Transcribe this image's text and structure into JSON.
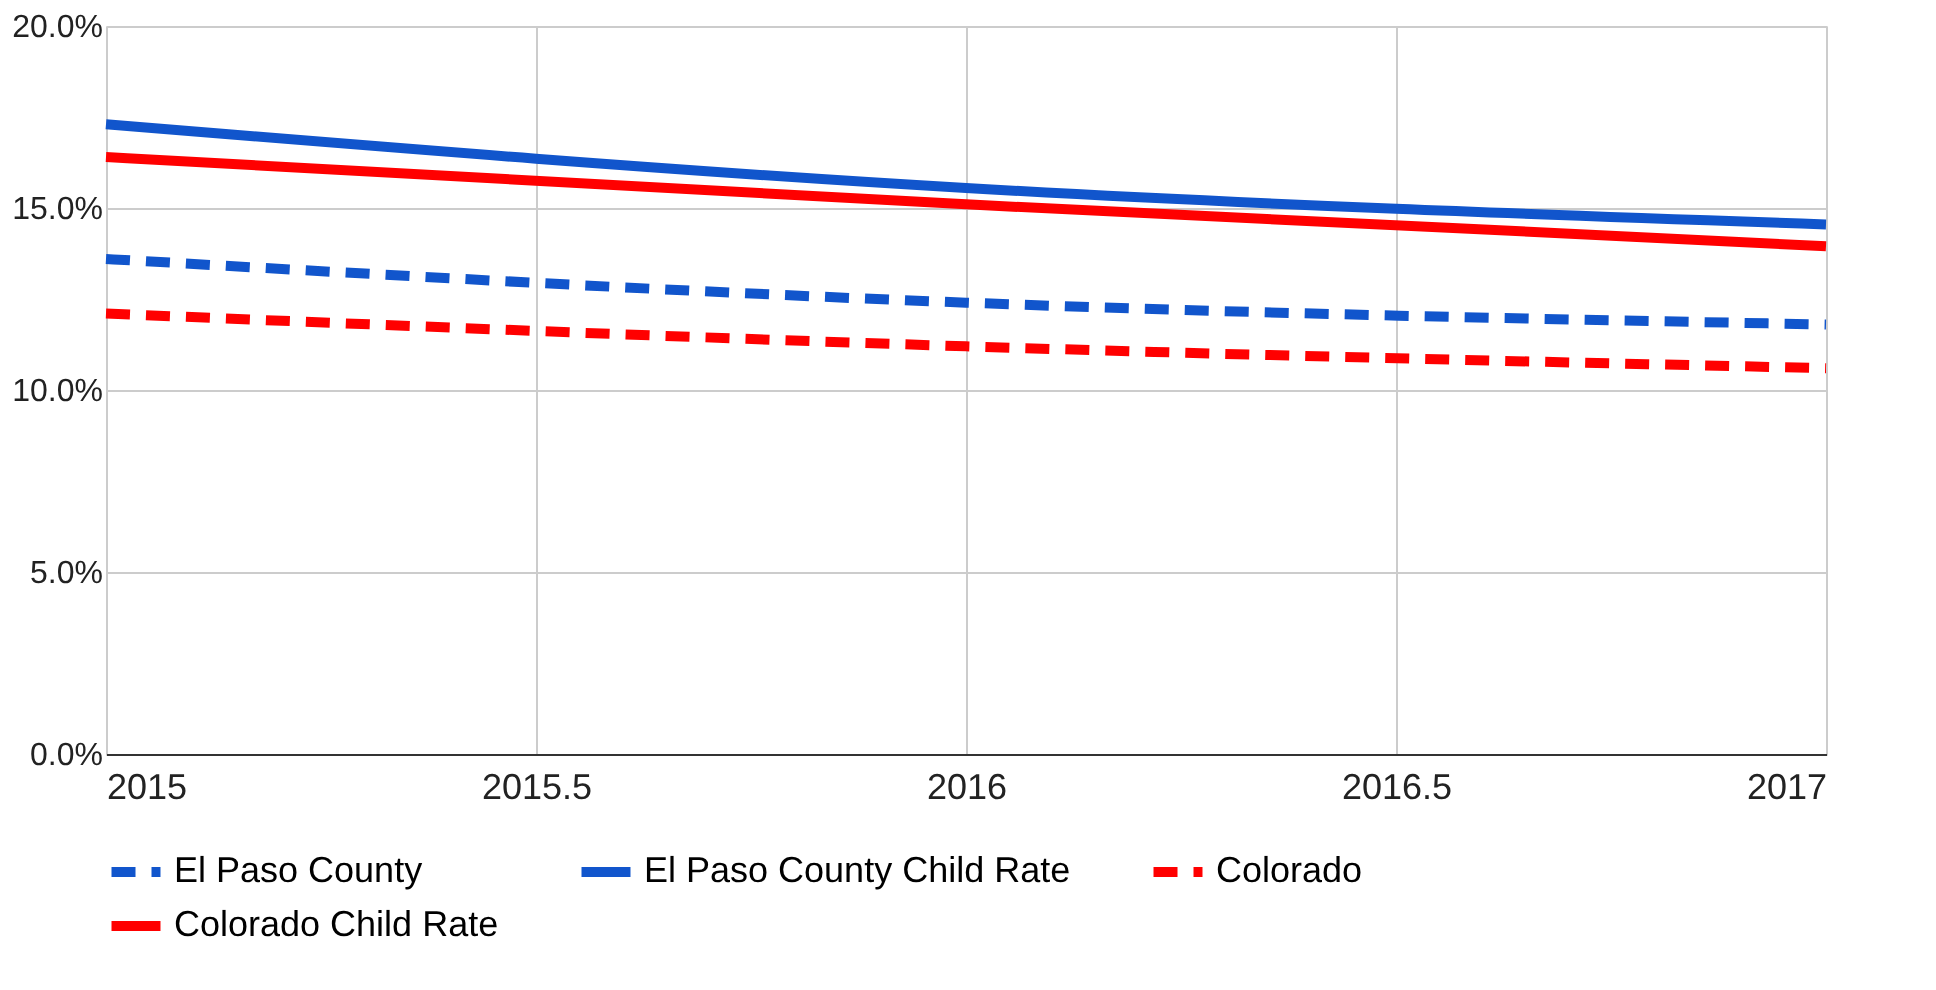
{
  "chart_data": {
    "type": "line",
    "x": [
      2015,
      2016,
      2017
    ],
    "series": [
      {
        "name": "El Paso County",
        "color": "#1155cc",
        "line_style": "dashed",
        "values": [
          13.6,
          12.4,
          11.8
        ]
      },
      {
        "name": "El Paso County Child Rate",
        "color": "#1155cc",
        "line_style": "solid",
        "values": [
          17.3,
          15.55,
          14.55
        ]
      },
      {
        "name": "Colorado",
        "color": "#ff0000",
        "line_style": "dashed",
        "values": [
          12.1,
          11.2,
          10.6
        ]
      },
      {
        "name": "Colorado Child Rate",
        "color": "#ff0000",
        "line_style": "solid",
        "values": [
          16.4,
          15.1,
          13.95
        ]
      }
    ],
    "xlim": [
      2015,
      2017
    ],
    "xticks": [
      2015,
      2015.5,
      2016,
      2016.5,
      2017
    ],
    "ylim": [
      0,
      20
    ],
    "yticks": [
      {
        "value": 0,
        "label": "0.0%"
      },
      {
        "value": 5,
        "label": "5.0%"
      },
      {
        "value": 10,
        "label": "10.0%"
      },
      {
        "value": 15,
        "label": "15.0%"
      },
      {
        "value": 20,
        "label": "20.0%"
      }
    ],
    "grid": true,
    "legend": "bottom",
    "marker": "none"
  }
}
